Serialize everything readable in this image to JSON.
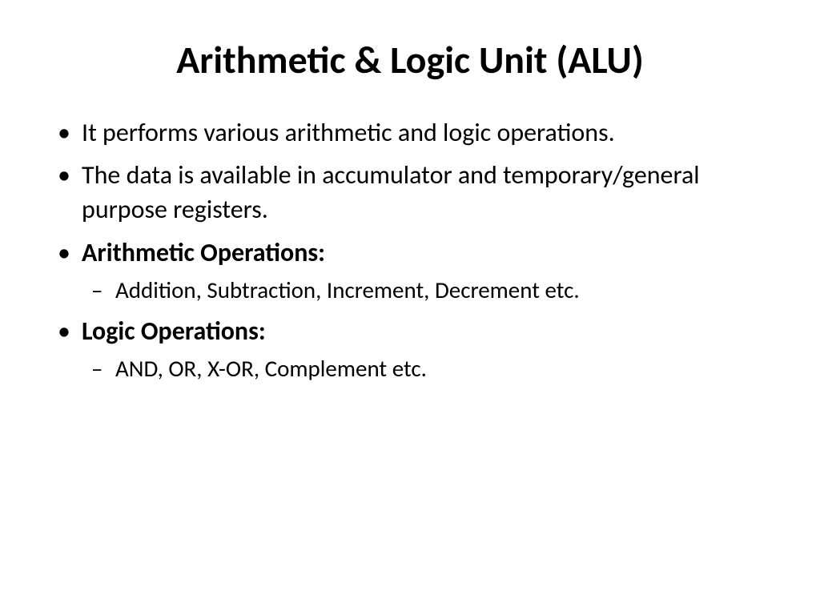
{
  "title": "Arithmetic & Logic Unit (ALU)",
  "bullets": {
    "b1": "It performs various arithmetic and logic operations.",
    "b2": "The data is available in accumulator and temporary/general purpose registers.",
    "b3": "Arithmetic Operations:",
    "b3_sub1": "Addition, Subtraction, Increment, Decrement etc.",
    "b4": "Logic Operations:",
    "b4_sub1": "AND, OR, X-OR, Complement etc."
  }
}
